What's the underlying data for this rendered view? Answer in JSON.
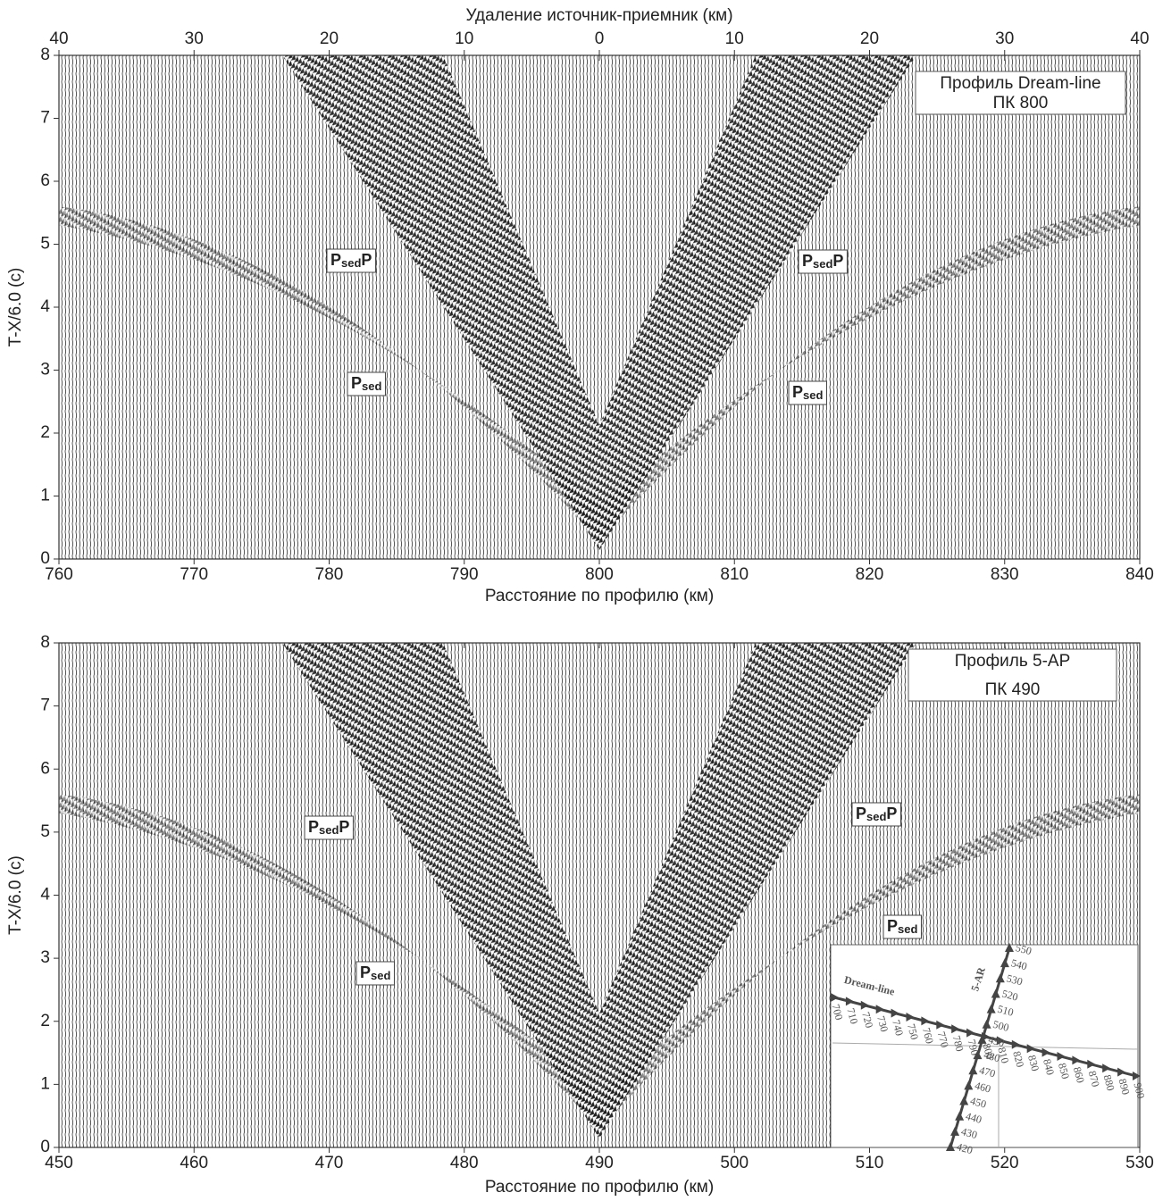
{
  "chart_data": [
    {
      "type": "seismic",
      "x2label": "Удаление источник-приемник (км)",
      "x2lim": [
        -40,
        40
      ],
      "x2ticks": [
        {
          "value": -40,
          "label": "40"
        },
        {
          "value": -30,
          "label": "30"
        },
        {
          "value": -20,
          "label": "20"
        },
        {
          "value": -10,
          "label": "10"
        },
        0,
        10,
        20,
        30,
        40
      ],
      "xlabel": "Расстояние по профилю (км)",
      "xlim": [
        760,
        840
      ],
      "xticks": [
        760,
        770,
        780,
        790,
        800,
        810,
        820,
        830,
        840
      ],
      "ylabel": "T-X/6.0  (с)",
      "ylim": [
        0,
        8
      ],
      "yticks": [
        0,
        1,
        2,
        3,
        4,
        5,
        6,
        7,
        8
      ],
      "legend": [
        "Профиль Dream-line",
        "ПК 800"
      ],
      "annotations": [
        [
          "P",
          "sed",
          "P"
        ],
        [
          "P",
          "sed",
          "P"
        ],
        [
          "P",
          "sed"
        ],
        [
          "P",
          "sed"
        ]
      ]
    },
    {
      "type": "seismic",
      "xlabel": "Расстояние по профилю (км)",
      "xlim": [
        450,
        530
      ],
      "xticks": [
        450,
        460,
        470,
        480,
        490,
        500,
        510,
        520,
        530
      ],
      "ylabel": "T-X/6.0  (с)",
      "ylim": [
        0,
        8
      ],
      "yticks": [
        0,
        1,
        2,
        3,
        4,
        5,
        6,
        7,
        8
      ],
      "legend": [
        "Профиль 5-АР",
        "ПК 490"
      ],
      "annotations": [
        [
          "P",
          "sed",
          "P"
        ],
        [
          "P",
          "sed",
          "P"
        ],
        [
          "P",
          "sed"
        ],
        [
          "P",
          "sed"
        ]
      ],
      "inset": {
        "line1": "Dream-line",
        "line1_ticks": [
          700,
          710,
          720,
          730,
          740,
          750,
          760,
          770,
          780,
          790,
          800,
          810,
          820,
          830,
          840,
          850,
          860,
          870,
          880,
          890,
          900
        ],
        "line2": "5-AR",
        "line2_ticks": [
          420,
          430,
          440,
          450,
          460,
          470,
          480,
          490,
          500,
          510,
          520,
          530,
          540,
          550
        ]
      }
    }
  ]
}
